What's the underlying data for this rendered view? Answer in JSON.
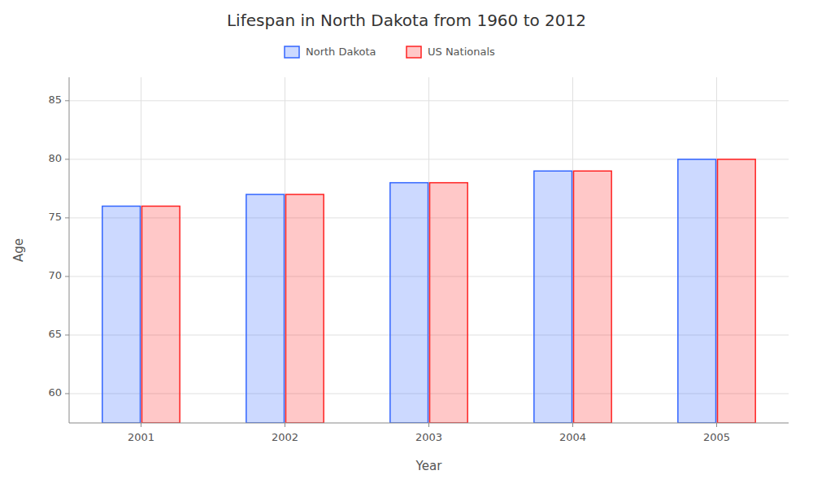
{
  "chart_data": {
    "type": "bar",
    "title": "Lifespan in North Dakota from 1960 to 2012",
    "x_label": "Year",
    "y_label": "Age",
    "categories": [
      "2001",
      "2002",
      "2003",
      "2004",
      "2005"
    ],
    "series": [
      {
        "name": "North Dakota",
        "color": "#3366ff",
        "values": [
          76.0,
          77.0,
          78.0,
          79.0,
          80.0
        ]
      },
      {
        "name": "US Nationals",
        "color": "#ff2222",
        "values": [
          76.0,
          77.0,
          78.0,
          79.0,
          80.0
        ]
      }
    ],
    "ylim": [
      57.5,
      87
    ],
    "yticks": [
      60,
      65,
      70,
      75,
      80,
      85
    ],
    "grid": true,
    "legend": "top"
  }
}
